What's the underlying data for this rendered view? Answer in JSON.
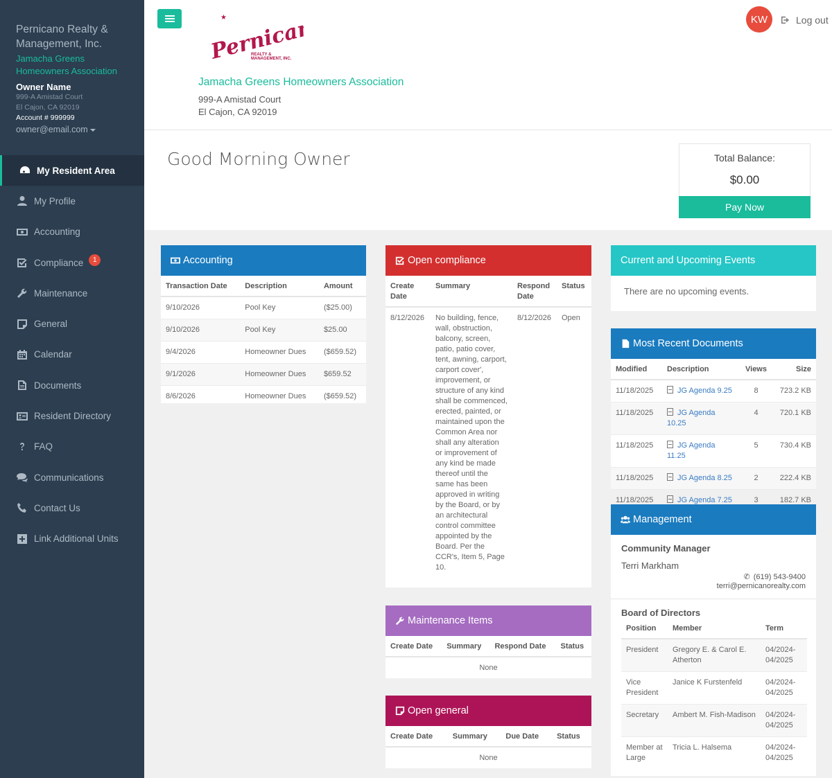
{
  "sidebar": {
    "org_name": "Pernicano Realty & Management, Inc.",
    "hoa_name": "Jamacha Greens Homeowners Association",
    "owner_name": "Owner Name",
    "addr1": "999-A Amistad Court",
    "addr2": "El Cajon, CA 92019",
    "account": "Account # 999999",
    "email": "owner@email.com",
    "nav": [
      {
        "label": "My Resident Area",
        "icon": "dashboard-icon",
        "active": true
      },
      {
        "label": "My Profile",
        "icon": "user-icon"
      },
      {
        "label": "Accounting",
        "icon": "money-icon"
      },
      {
        "label": "Compliance",
        "icon": "checkbox-icon",
        "badge": "1"
      },
      {
        "label": "Maintenance",
        "icon": "wrench-icon"
      },
      {
        "label": "General",
        "icon": "note-icon"
      },
      {
        "label": "Calendar",
        "icon": "calendar-icon"
      },
      {
        "label": "Documents",
        "icon": "document-icon"
      },
      {
        "label": "Resident Directory",
        "icon": "address-card-icon"
      },
      {
        "label": "FAQ",
        "icon": "question-icon"
      },
      {
        "label": "Communications",
        "icon": "comments-icon"
      },
      {
        "label": "Contact Us",
        "icon": "phone-icon"
      },
      {
        "label": "Link Additional Units",
        "icon": "plus-square-icon"
      }
    ]
  },
  "header": {
    "logo_text": "Pernicano",
    "logo_sub1": "REALTY &",
    "logo_sub2": "MANAGEMENT, INC.",
    "hoa_name": "Jamacha Greens Homeowners Association",
    "addr1": "999-A Amistad Court",
    "addr2": "El Cajon, CA 92019",
    "avatar_initials": "KW",
    "logout_label": "Log out"
  },
  "greeting": "Good Morning Owner",
  "balance": {
    "label": "Total Balance:",
    "value": "$0.00",
    "pay_label": "Pay Now"
  },
  "accounting": {
    "title": "Accounting",
    "color": "#1a7bbf",
    "headers": [
      "Transaction Date",
      "Description",
      "Amount"
    ],
    "rows": [
      [
        "9/10/2026",
        "Pool Key",
        "($25.00)"
      ],
      [
        "9/10/2026",
        "Pool Key",
        "$25.00"
      ],
      [
        "9/4/2026",
        "Homeowner Dues",
        "($659.52)"
      ],
      [
        "9/1/2026",
        "Homeowner Dues",
        "$659.52"
      ],
      [
        "8/6/2026",
        "Homeowner Dues",
        "($659.52)"
      ]
    ]
  },
  "compliance": {
    "title": "Open compliance",
    "color": "#d32f2f",
    "headers": [
      "Create Date",
      "Summary",
      "Respond Date",
      "Status"
    ],
    "rows": [
      [
        "8/12/2026",
        "No building, fence, wall, obstruction, balcony, screen, patio, patio cover, tent, awning, carport, carport cover', improvement, or structure of any kind shall be commenced, erected, painted, or maintained upon the Common Area nor shall any alteration or improvement of any kind be made thereof until the same has been approved in writing by the Board, or by an architectural control committee appointed by the Board. Per the CCR's, Item 5, Page 10.",
        "8/12/2026",
        "Open"
      ]
    ]
  },
  "maintenance": {
    "title": "Maintenance Items",
    "color": "#a56cc1",
    "headers": [
      "Create Date",
      "Summary",
      "Respond Date",
      "Status"
    ],
    "empty": "None"
  },
  "general": {
    "title": "Open general",
    "color": "#ad1457",
    "headers": [
      "Create Date",
      "Summary",
      "Due Date",
      "Status"
    ],
    "empty": "None"
  },
  "events": {
    "title": "Current and Upcoming Events",
    "color": "#26c6c6",
    "empty": "There are no upcoming events."
  },
  "documents": {
    "title": "Most Recent Documents",
    "color": "#1a7bbf",
    "headers": [
      "Modified",
      "Description",
      "Views",
      "Size"
    ],
    "rows": [
      [
        "11/18/2025",
        "JG Agenda 9.25",
        "8",
        "723.2 KB"
      ],
      [
        "11/18/2025",
        "JG Agenda 10.25",
        "4",
        "720.1 KB"
      ],
      [
        "11/18/2025",
        "JG Agenda 11.25",
        "5",
        "730.4 KB"
      ],
      [
        "11/18/2025",
        "JG Agenda 8.25",
        "2",
        "222.4 KB"
      ],
      [
        "11/18/2025",
        "JG Agenda 7.25",
        "3",
        "182.7 KB"
      ]
    ]
  },
  "management": {
    "title": "Management",
    "color": "#1a7bbf",
    "cm_heading": "Community Manager",
    "cm_name": "Terri Markham",
    "cm_phone": "(619) 543-9400",
    "cm_email": "terri@pernicanorealty.com",
    "board_heading": "Board of Directors",
    "headers": [
      "Position",
      "Member",
      "Term"
    ],
    "rows": [
      [
        "President",
        "Gregory E. & Carol E. Atherton",
        "04/2024-04/2025"
      ],
      [
        "Vice President",
        "Janice K Furstenfeld",
        "04/2024-04/2025"
      ],
      [
        "Secretary",
        "Ambert M. Fish-Madison",
        "04/2024-04/2025"
      ],
      [
        "Member at Large",
        "Tricia L. Halsema",
        "04/2024-04/2025"
      ]
    ]
  }
}
